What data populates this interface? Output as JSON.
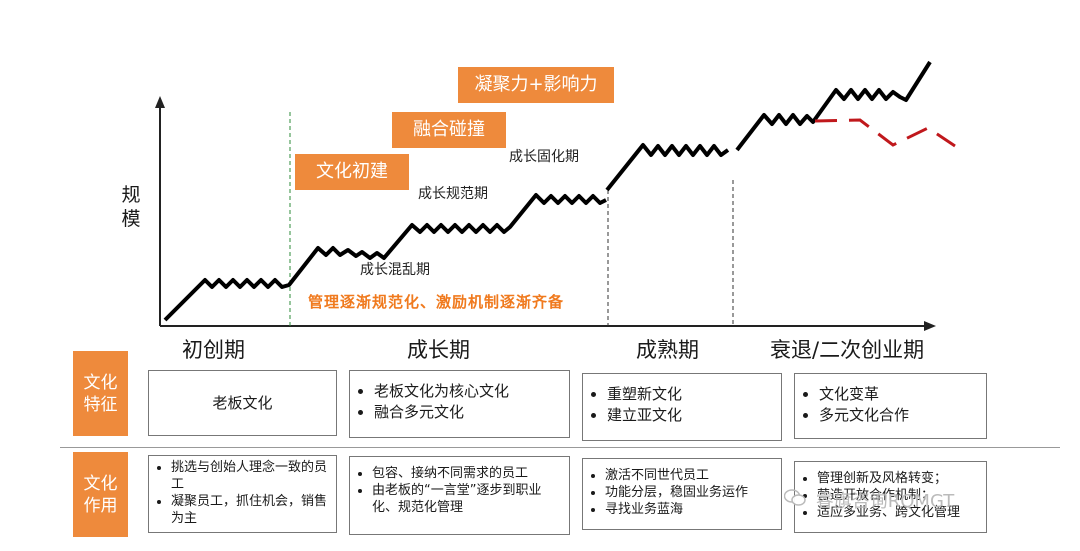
{
  "y_axis_label": "规模",
  "stages": [
    "初创期",
    "成长期",
    "成熟期",
    "衰退/二次创业期"
  ],
  "culture_tags": [
    "文化初建",
    "融合碰撞",
    "凝聚力+影响力"
  ],
  "periods": [
    "成长混乱期",
    "成长规范期",
    "成长固化期"
  ],
  "orange_note": "管理逐渐规范化、激励机制逐渐齐备",
  "row_heads": {
    "features": "文化\n特征",
    "roles": "文化\n作用"
  },
  "features": [
    {
      "items": [
        "老板文化"
      ]
    },
    {
      "items": [
        "老板文化为核心文化",
        "融合多元文化"
      ]
    },
    {
      "items": [
        "重塑新文化",
        "建立亚文化"
      ]
    },
    {
      "items": [
        "文化变革",
        "多元文化合作"
      ]
    }
  ],
  "roles": [
    {
      "items": [
        "挑选与创始人理念一致的员工",
        "凝聚员工，抓住机会，销售为主"
      ]
    },
    {
      "items": [
        "包容、接纳不同需求的员工",
        "由老板的“一言堂”逐步到职业化、规范化管理"
      ]
    },
    {
      "items": [
        "激活不同世代员工",
        "功能分层，稳固业务运作",
        "寻找业务蓝海"
      ]
    },
    {
      "items": [
        "管理创新及风格转变；",
        "营造开放合作机制；",
        "适应多业务、跨文化管理"
      ]
    }
  ],
  "watermark": "睿旗咨询RQMGT",
  "colors": {
    "accent": "#ee8a3c",
    "decline_line": "#c0181c",
    "growth_line": "#000000",
    "stage_divider": "#2e8b3a"
  }
}
